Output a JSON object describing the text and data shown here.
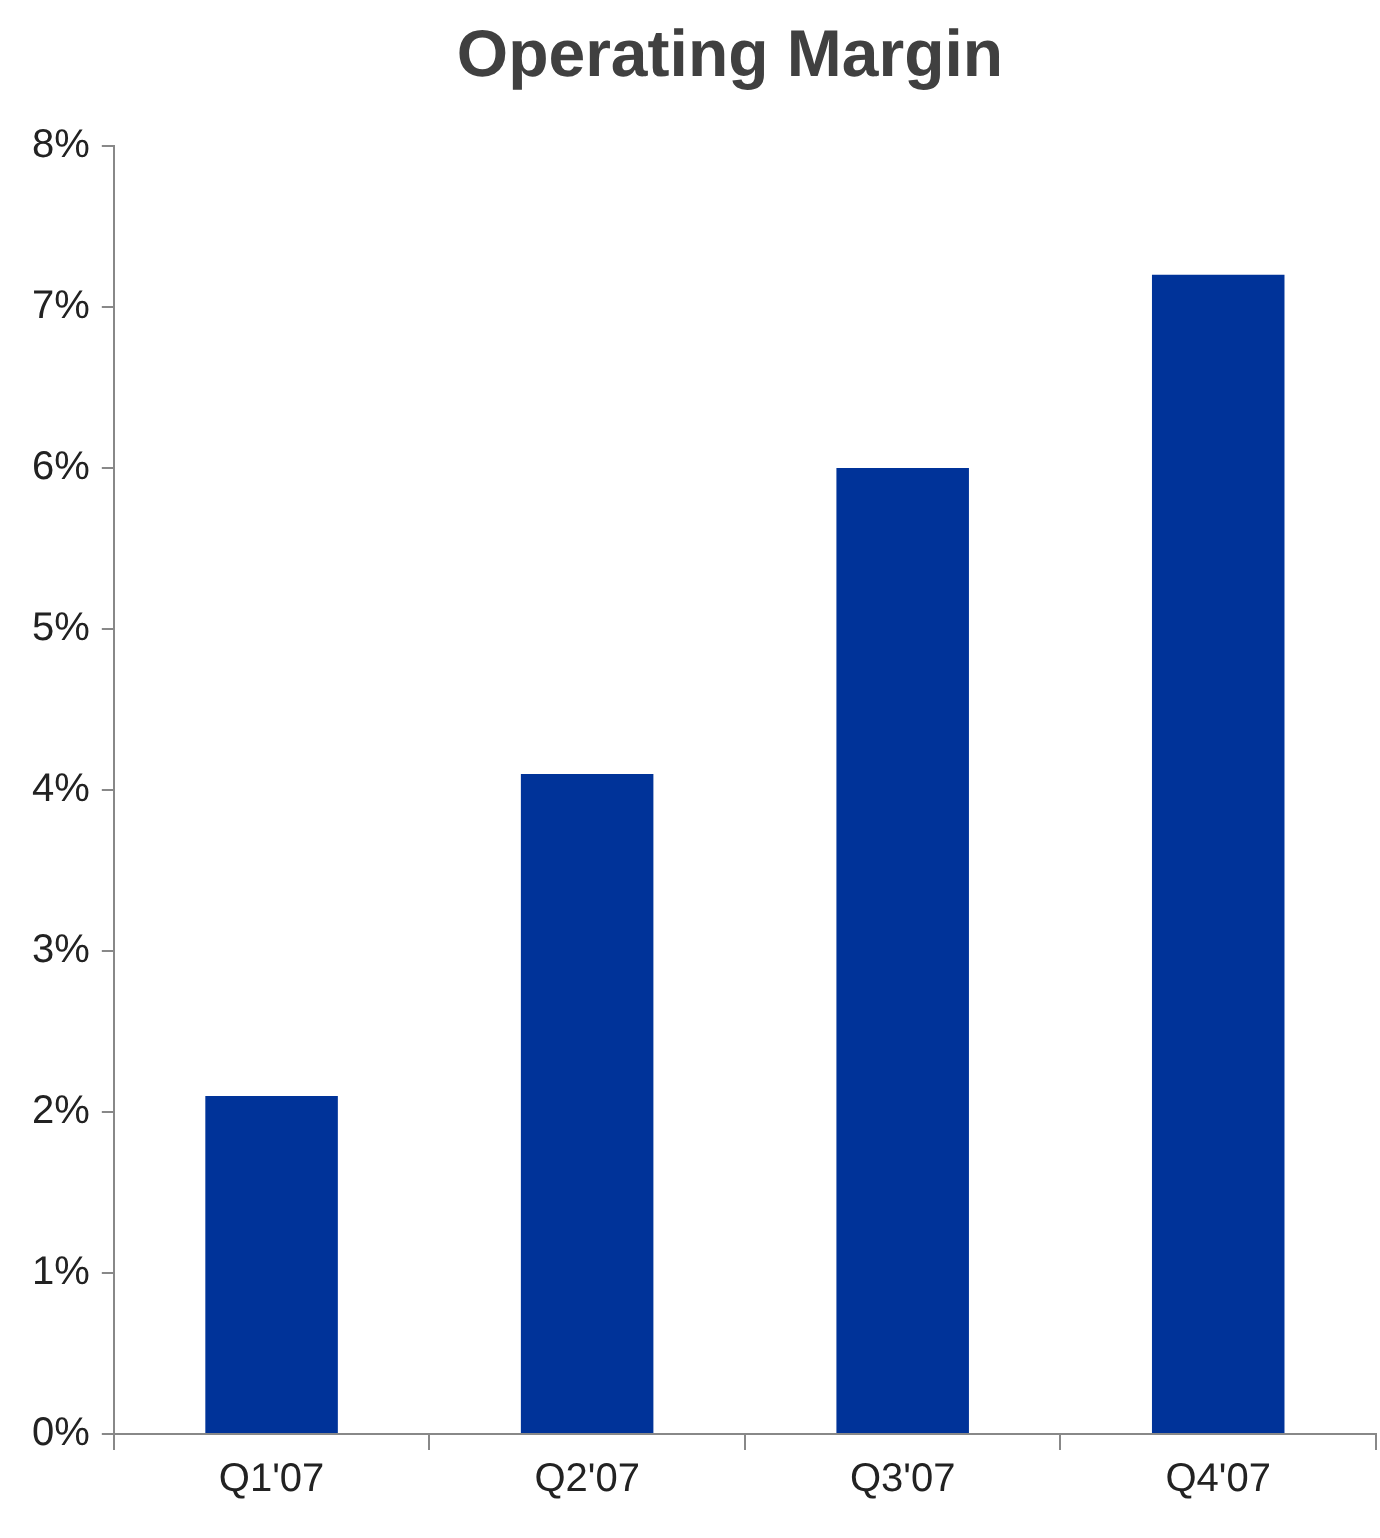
{
  "chart_data": {
    "type": "bar",
    "title": "Operating Margin",
    "categories": [
      "Q1'07",
      "Q2'07",
      "Q3'07",
      "Q4'07"
    ],
    "values": [
      2.1,
      4.1,
      6.0,
      7.2
    ],
    "color": "#003399",
    "ylim": [
      0,
      8
    ],
    "yticks": [
      {
        "value": 0,
        "label": "0%"
      },
      {
        "value": 1,
        "label": "1%"
      },
      {
        "value": 2,
        "label": "2%"
      },
      {
        "value": 3,
        "label": "3%"
      },
      {
        "value": 4,
        "label": "4%"
      },
      {
        "value": 5,
        "label": "5%"
      },
      {
        "value": 6,
        "label": "6%"
      },
      {
        "value": 7,
        "label": "7%"
      },
      {
        "value": 8,
        "label": "8%"
      }
    ],
    "grid": false,
    "legend": false
  }
}
